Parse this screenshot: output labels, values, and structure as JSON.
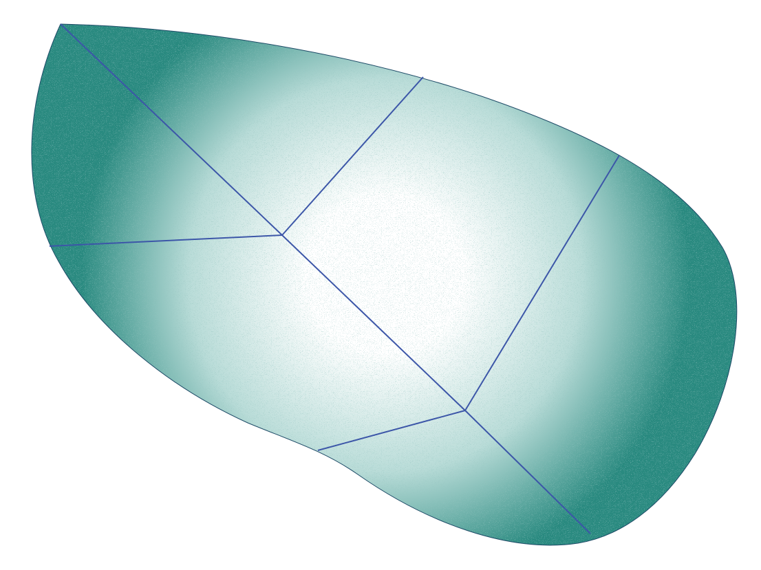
{
  "figure": {
    "description_free": true,
    "colors": {
      "background": "#ffffff",
      "fill": "#2a8a80",
      "fill_light": "#ffffff",
      "lines": "#3c56a8",
      "outline": "#1d4a66"
    },
    "icon": "stippled-leaf-shape"
  }
}
